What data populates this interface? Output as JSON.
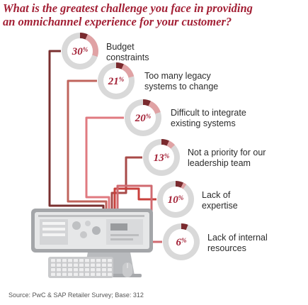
{
  "title_lines": [
    "What is the greatest challenge you face in providing",
    "an omnichannel experience for your customer?"
  ],
  "chart_data": {
    "type": "pie",
    "title": "What is the greatest challenge you face in providing an omnichannel experience for your customer?",
    "unit": "%",
    "items": [
      {
        "value": 30,
        "label_lines": [
          "Budget",
          "constraints"
        ],
        "wire_color": "#7a3030"
      },
      {
        "value": 21,
        "label_lines": [
          "Too many legacy",
          "systems to change"
        ],
        "wire_color": "#c0645c"
      },
      {
        "value": 20,
        "label_lines": [
          "Difficult to integrate",
          "existing systems"
        ],
        "wire_color": "#e07a80"
      },
      {
        "value": 13,
        "label_lines": [
          "Not a priority for our",
          "leadership team"
        ],
        "wire_color": "#a84a48"
      },
      {
        "value": 10,
        "label_lines": [
          "Lack of",
          "expertise"
        ],
        "wire_color": "#c8403c"
      },
      {
        "value": 6,
        "label_lines": [
          "Lack of internal",
          "resources"
        ],
        "wire_color": "#d06a70"
      }
    ],
    "colors": {
      "ring_track": "#d9d9d9",
      "ring_fill": "#ffffff",
      "dark_segment": "#7a2a2e",
      "light_segment": "#e0a2a4",
      "value_text": "#a32035"
    }
  },
  "source": "Source: PwC & SAP Retailer Survey; Base: 312"
}
